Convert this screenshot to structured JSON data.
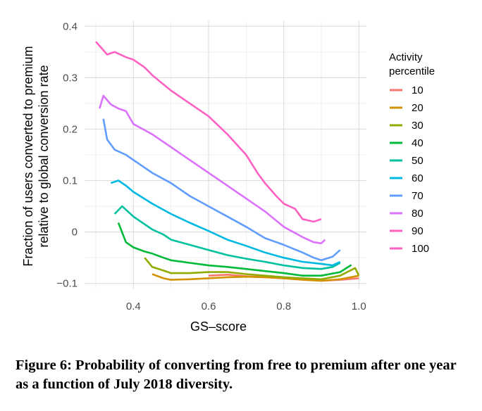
{
  "caption": "Figure 6: Probability of converting from free to premium after one year as a function of July 2018 diversity.",
  "chart_data": {
    "type": "line",
    "xlabel": "GS–score",
    "ylabel_line1": "Fraction of users converted to premium",
    "ylabel_line2": "relative to global conversion rate",
    "xlim": [
      0.27,
      1.02
    ],
    "ylim": [
      -0.11,
      0.41
    ],
    "xticks": [
      0.4,
      0.6,
      0.8,
      1.0
    ],
    "xtick_labels": [
      "0.4",
      "0.6",
      "0.8",
      "1.0"
    ],
    "yticks": [
      -0.1,
      0,
      0.1,
      0.2,
      0.3,
      0.4
    ],
    "ytick_labels": [
      "−0.1",
      "0",
      "0.1",
      "0.2",
      "0.3",
      "0.4"
    ],
    "grid": true,
    "legend": {
      "title_line1": "Activity",
      "title_line2": "percentile",
      "position": "right"
    },
    "series": [
      {
        "name": "10",
        "color": "#F8766D",
        "x": [
          0.6,
          0.65,
          0.7,
          0.75,
          0.8,
          0.85,
          0.9,
          0.95,
          1.0
        ],
        "y": [
          -0.085,
          -0.083,
          -0.086,
          -0.088,
          -0.09,
          -0.092,
          -0.095,
          -0.093,
          -0.09
        ]
      },
      {
        "name": "20",
        "color": "#D39200",
        "x": [
          0.45,
          0.48,
          0.5,
          0.55,
          0.6,
          0.65,
          0.7,
          0.75,
          0.8,
          0.85,
          0.9,
          0.95,
          1.0
        ],
        "y": [
          -0.082,
          -0.09,
          -0.093,
          -0.092,
          -0.09,
          -0.088,
          -0.087,
          -0.088,
          -0.09,
          -0.093,
          -0.095,
          -0.092,
          -0.085
        ]
      },
      {
        "name": "30",
        "color": "#93AA00",
        "x": [
          0.43,
          0.45,
          0.48,
          0.5,
          0.55,
          0.6,
          0.65,
          0.7,
          0.75,
          0.8,
          0.85,
          0.9,
          0.95,
          0.99,
          1.0
        ],
        "y": [
          -0.05,
          -0.068,
          -0.075,
          -0.08,
          -0.08,
          -0.078,
          -0.078,
          -0.082,
          -0.085,
          -0.088,
          -0.09,
          -0.092,
          -0.085,
          -0.07,
          -0.085
        ]
      },
      {
        "name": "40",
        "color": "#00BA38",
        "x": [
          0.36,
          0.38,
          0.4,
          0.43,
          0.45,
          0.48,
          0.5,
          0.55,
          0.6,
          0.65,
          0.7,
          0.75,
          0.8,
          0.85,
          0.9,
          0.95,
          0.98
        ],
        "y": [
          0.018,
          -0.02,
          -0.03,
          -0.038,
          -0.042,
          -0.05,
          -0.055,
          -0.06,
          -0.065,
          -0.068,
          -0.072,
          -0.076,
          -0.08,
          -0.085,
          -0.085,
          -0.078,
          -0.064
        ]
      },
      {
        "name": "50",
        "color": "#00C19F",
        "x": [
          0.35,
          0.37,
          0.4,
          0.43,
          0.45,
          0.48,
          0.5,
          0.55,
          0.6,
          0.65,
          0.7,
          0.75,
          0.8,
          0.85,
          0.9,
          0.93,
          0.95
        ],
        "y": [
          0.035,
          0.05,
          0.03,
          0.015,
          0.005,
          -0.005,
          -0.015,
          -0.025,
          -0.035,
          -0.045,
          -0.052,
          -0.058,
          -0.065,
          -0.07,
          -0.072,
          -0.068,
          -0.06
        ]
      },
      {
        "name": "60",
        "color": "#00B9E3",
        "x": [
          0.34,
          0.36,
          0.38,
          0.4,
          0.45,
          0.5,
          0.55,
          0.6,
          0.65,
          0.7,
          0.75,
          0.8,
          0.85,
          0.9,
          0.93,
          0.95
        ],
        "y": [
          0.095,
          0.1,
          0.09,
          0.078,
          0.055,
          0.035,
          0.018,
          0.002,
          -0.015,
          -0.027,
          -0.04,
          -0.05,
          -0.058,
          -0.062,
          -0.065,
          -0.058
        ]
      },
      {
        "name": "70",
        "color": "#619CFF",
        "x": [
          0.32,
          0.33,
          0.35,
          0.38,
          0.4,
          0.45,
          0.5,
          0.55,
          0.6,
          0.65,
          0.7,
          0.75,
          0.8,
          0.85,
          0.88,
          0.9,
          0.93,
          0.95
        ],
        "y": [
          0.22,
          0.18,
          0.16,
          0.15,
          0.14,
          0.115,
          0.095,
          0.07,
          0.05,
          0.03,
          0.01,
          -0.012,
          -0.025,
          -0.04,
          -0.05,
          -0.055,
          -0.048,
          -0.035
        ]
      },
      {
        "name": "80",
        "color": "#DB72FB",
        "x": [
          0.31,
          0.32,
          0.34,
          0.36,
          0.38,
          0.4,
          0.45,
          0.5,
          0.55,
          0.6,
          0.65,
          0.7,
          0.75,
          0.8,
          0.85,
          0.88,
          0.9,
          0.91
        ],
        "y": [
          0.24,
          0.265,
          0.248,
          0.24,
          0.235,
          0.21,
          0.19,
          0.165,
          0.14,
          0.115,
          0.09,
          0.065,
          0.04,
          0.01,
          -0.01,
          -0.02,
          -0.022,
          -0.015
        ]
      },
      {
        "name": "90",
        "color": "#FF61C3",
        "x": [
          0.3,
          0.31,
          0.33,
          0.35,
          0.38,
          0.4,
          0.43,
          0.45,
          0.5,
          0.55,
          0.6,
          0.65,
          0.7,
          0.73,
          0.75,
          0.78,
          0.8,
          0.83,
          0.85,
          0.88,
          0.9
        ],
        "y": [
          0.37,
          0.362,
          0.345,
          0.35,
          0.34,
          0.335,
          0.32,
          0.305,
          0.275,
          0.25,
          0.225,
          0.19,
          0.15,
          0.115,
          0.095,
          0.07,
          0.055,
          0.045,
          0.025,
          0.02,
          0.025
        ]
      },
      {
        "name": "100",
        "color": "#FF61C3",
        "x": [],
        "y": []
      }
    ]
  }
}
